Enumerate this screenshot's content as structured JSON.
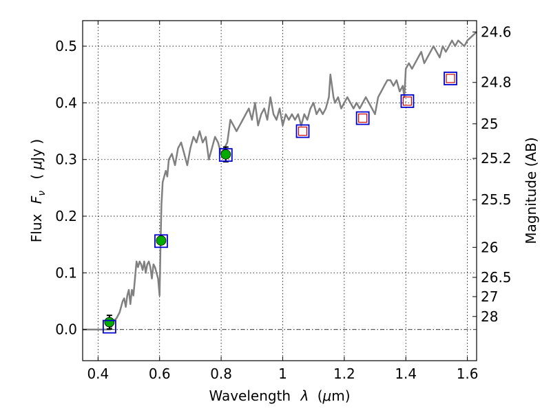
{
  "chart_data": {
    "type": "line",
    "xlabel_text": "Wavelength",
    "xlabel_symbol": "λ",
    "xlabel_unit_open": "(",
    "xlabel_unit_symbol": "μ",
    "xlabel_unit_rest": "m)",
    "ylabel_text": "Flux",
    "ylabel_symbol": "F",
    "ylabel_subscript": "ν",
    "ylabel_unit_open": "(",
    "ylabel_unit_symbol": "μ",
    "ylabel_unit_rest": "Jy )",
    "y2label": "Magnitude (AB)",
    "xlim": [
      0.35,
      1.63
    ],
    "ylim": [
      -0.055,
      0.545
    ],
    "grid": true,
    "x_ticks": [
      {
        "value": 0.4,
        "label": "0.4"
      },
      {
        "value": 0.6,
        "label": "0.6"
      },
      {
        "value": 0.8,
        "label": "0.8"
      },
      {
        "value": 1.0,
        "label": "1"
      },
      {
        "value": 1.2,
        "label": "1.2"
      },
      {
        "value": 1.4,
        "label": "1.4"
      },
      {
        "value": 1.6,
        "label": "1.6"
      }
    ],
    "y_ticks": [
      {
        "value": 0.0,
        "label": "0.0"
      },
      {
        "value": 0.1,
        "label": "0.1"
      },
      {
        "value": 0.2,
        "label": "0.2"
      },
      {
        "value": 0.3,
        "label": "0.3"
      },
      {
        "value": 0.4,
        "label": "0.4"
      },
      {
        "value": 0.5,
        "label": "0.5"
      }
    ],
    "y2_ticks": [
      {
        "flux": 0.525,
        "label": "24.6"
      },
      {
        "flux": 0.436,
        "label": "24.8"
      },
      {
        "flux": 0.363,
        "label": "25"
      },
      {
        "flux": 0.302,
        "label": "25.2"
      },
      {
        "flux": 0.229,
        "label": "25.5"
      },
      {
        "flux": 0.145,
        "label": "26"
      },
      {
        "flux": 0.092,
        "label": "26.5"
      },
      {
        "flux": 0.058,
        "label": "27"
      },
      {
        "flux": 0.023,
        "label": "28"
      }
    ],
    "spectrum": {
      "color": "#808080",
      "x": [
        0.35,
        0.44,
        0.45,
        0.46,
        0.47,
        0.48,
        0.485,
        0.49,
        0.495,
        0.5,
        0.505,
        0.51,
        0.515,
        0.52,
        0.525,
        0.53,
        0.535,
        0.54,
        0.545,
        0.55,
        0.555,
        0.56,
        0.565,
        0.57,
        0.575,
        0.58,
        0.585,
        0.59,
        0.595,
        0.6,
        0.603,
        0.606,
        0.61,
        0.615,
        0.62,
        0.625,
        0.63,
        0.64,
        0.65,
        0.66,
        0.67,
        0.68,
        0.69,
        0.7,
        0.71,
        0.72,
        0.73,
        0.74,
        0.75,
        0.76,
        0.77,
        0.78,
        0.79,
        0.8,
        0.81,
        0.82,
        0.83,
        0.84,
        0.85,
        0.86,
        0.87,
        0.88,
        0.89,
        0.9,
        0.91,
        0.92,
        0.93,
        0.94,
        0.95,
        0.96,
        0.97,
        0.98,
        0.99,
        1.0,
        1.01,
        1.02,
        1.03,
        1.04,
        1.05,
        1.06,
        1.07,
        1.08,
        1.09,
        1.1,
        1.11,
        1.12,
        1.13,
        1.14,
        1.15,
        1.155,
        1.16,
        1.165,
        1.17,
        1.18,
        1.19,
        1.2,
        1.21,
        1.22,
        1.23,
        1.24,
        1.25,
        1.26,
        1.27,
        1.28,
        1.29,
        1.3,
        1.31,
        1.32,
        1.33,
        1.34,
        1.35,
        1.36,
        1.37,
        1.38,
        1.39,
        1.395,
        1.4,
        1.41,
        1.42,
        1.43,
        1.44,
        1.45,
        1.46,
        1.47,
        1.48,
        1.49,
        1.5,
        1.51,
        1.52,
        1.53,
        1.54,
        1.55,
        1.56,
        1.57,
        1.58,
        1.59,
        1.6,
        1.61,
        1.62,
        1.63
      ],
      "y": [
        0.0,
        0.0,
        0.015,
        0.02,
        0.03,
        0.05,
        0.055,
        0.04,
        0.06,
        0.07,
        0.045,
        0.07,
        0.06,
        0.09,
        0.12,
        0.11,
        0.12,
        0.115,
        0.105,
        0.12,
        0.1,
        0.115,
        0.12,
        0.11,
        0.09,
        0.115,
        0.11,
        0.1,
        0.09,
        0.06,
        0.15,
        0.22,
        0.26,
        0.27,
        0.28,
        0.27,
        0.3,
        0.31,
        0.29,
        0.32,
        0.33,
        0.31,
        0.29,
        0.32,
        0.34,
        0.33,
        0.35,
        0.33,
        0.34,
        0.3,
        0.32,
        0.34,
        0.33,
        0.31,
        0.32,
        0.33,
        0.37,
        0.36,
        0.35,
        0.36,
        0.37,
        0.38,
        0.39,
        0.37,
        0.4,
        0.36,
        0.38,
        0.39,
        0.37,
        0.41,
        0.38,
        0.37,
        0.39,
        0.36,
        0.38,
        0.37,
        0.38,
        0.37,
        0.38,
        0.36,
        0.38,
        0.37,
        0.39,
        0.4,
        0.38,
        0.39,
        0.38,
        0.39,
        0.41,
        0.45,
        0.43,
        0.41,
        0.4,
        0.41,
        0.39,
        0.4,
        0.41,
        0.4,
        0.39,
        0.4,
        0.39,
        0.4,
        0.41,
        0.4,
        0.39,
        0.38,
        0.41,
        0.42,
        0.43,
        0.44,
        0.44,
        0.43,
        0.44,
        0.42,
        0.43,
        0.41,
        0.46,
        0.47,
        0.46,
        0.47,
        0.48,
        0.49,
        0.47,
        0.48,
        0.49,
        0.5,
        0.49,
        0.48,
        0.5,
        0.49,
        0.5,
        0.51,
        0.5,
        0.51,
        0.505,
        0.5,
        0.51,
        0.515,
        0.52,
        0.525
      ]
    },
    "photometry_detected": {
      "marker": "filled-circle",
      "color": "#00aa00",
      "x": [
        0.437,
        0.605,
        0.815
      ],
      "y": [
        0.013,
        0.157,
        0.309
      ],
      "yerr": [
        0.012,
        0.006,
        0.013
      ]
    },
    "model_fluxes": {
      "marker": "open-square",
      "color": "#0000cc",
      "x": [
        0.437,
        0.605,
        0.815,
        1.065,
        1.26,
        1.405,
        1.545
      ],
      "y": [
        0.005,
        0.156,
        0.308,
        0.35,
        0.373,
        0.403,
        0.443
      ]
    },
    "upper_points": {
      "marker": "open-square",
      "color": "#cc0000",
      "x": [
        1.065,
        1.26,
        1.405,
        1.545
      ],
      "y": [
        0.35,
        0.373,
        0.403,
        0.443
      ]
    }
  }
}
